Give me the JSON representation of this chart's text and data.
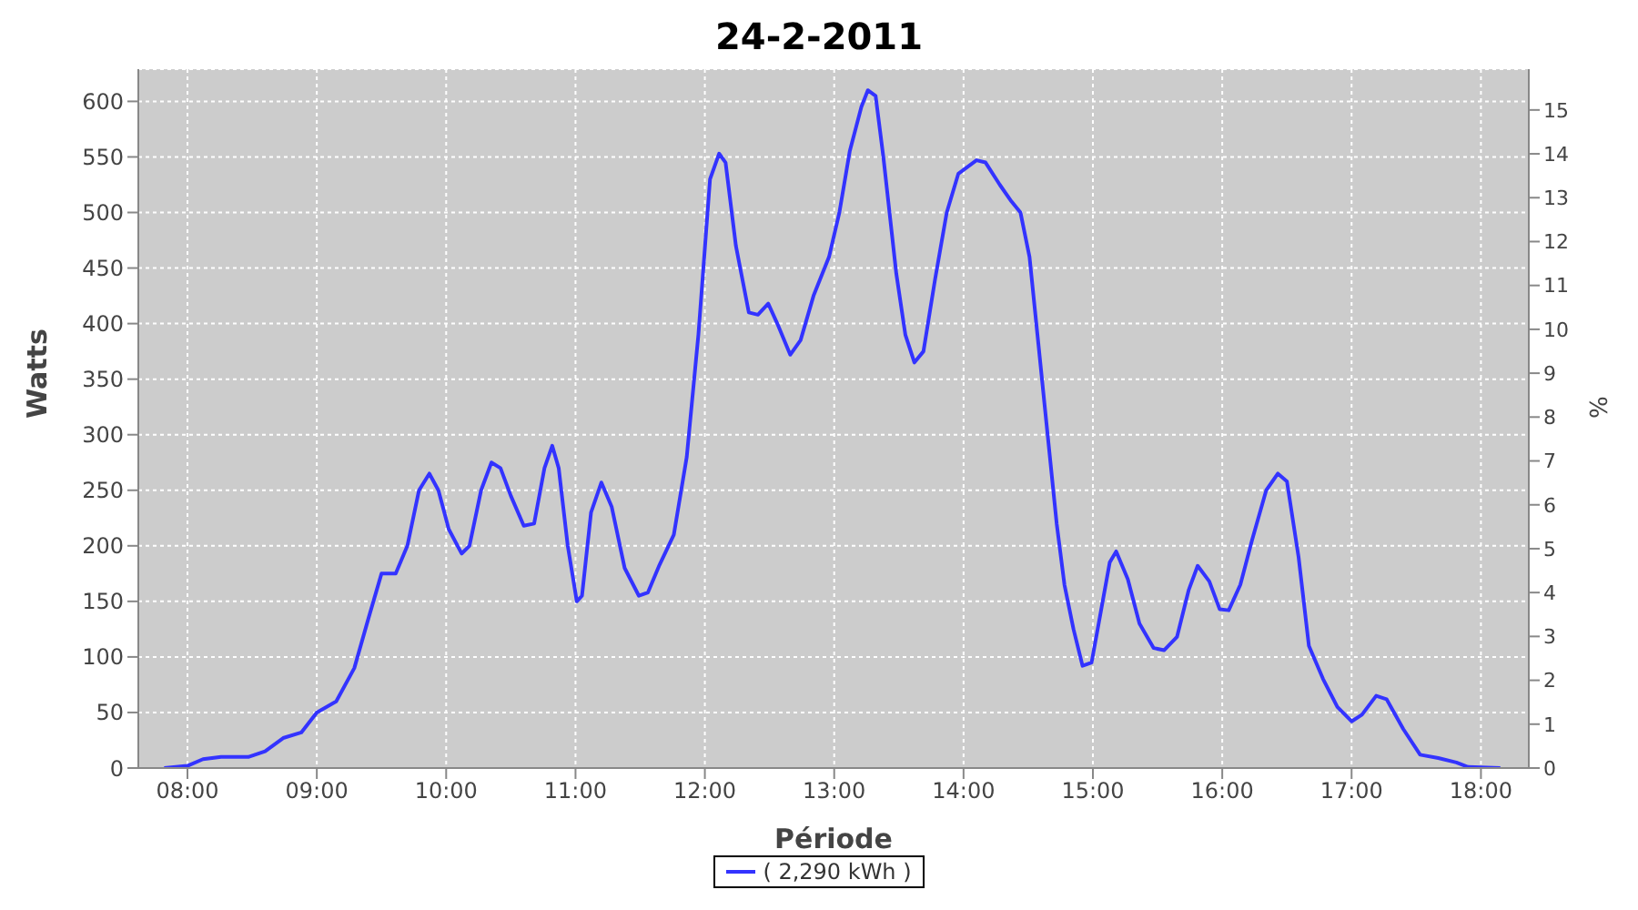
{
  "chart_data": {
    "type": "line",
    "title": "24-2-2011",
    "xlabel": "Période",
    "ylabel": "Watts",
    "y2label": "%",
    "x": [
      7.82,
      8.0,
      8.12,
      8.26,
      8.47,
      8.6,
      8.74,
      8.88,
      9.0,
      9.15,
      9.29,
      9.4,
      9.5,
      9.61,
      9.7,
      9.79,
      9.87,
      9.94,
      10.02,
      10.12,
      10.18,
      10.27,
      10.35,
      10.42,
      10.5,
      10.6,
      10.68,
      10.76,
      10.82,
      10.87,
      10.94,
      11.01,
      11.05,
      11.12,
      11.2,
      11.28,
      11.38,
      11.49,
      11.56,
      11.65,
      11.76,
      11.86,
      11.95,
      12.04,
      12.11,
      12.16,
      12.24,
      12.34,
      12.41,
      12.49,
      12.56,
      12.66,
      12.74,
      12.84,
      12.96,
      13.04,
      13.12,
      13.21,
      13.26,
      13.32,
      13.38,
      13.48,
      13.55,
      13.62,
      13.69,
      13.78,
      13.87,
      13.96,
      14.1,
      14.17,
      14.28,
      14.37,
      14.44,
      14.51,
      14.58,
      14.65,
      14.72,
      14.78,
      14.85,
      14.92,
      14.99,
      15.06,
      15.13,
      15.18,
      15.27,
      15.36,
      15.47,
      15.55,
      15.65,
      15.74,
      15.81,
      15.9,
      15.98,
      16.05,
      16.14,
      16.23,
      16.34,
      16.43,
      16.5,
      16.59,
      16.67,
      16.78,
      16.89,
      17.0,
      17.08,
      17.19,
      17.27,
      17.4,
      17.53,
      17.67,
      17.81,
      17.9,
      18.15
    ],
    "series": [
      {
        "name": "( 2,290 kWh )",
        "color": "#3333ff",
        "values": [
          0,
          2,
          8,
          10,
          10,
          15,
          27,
          32,
          50,
          60,
          90,
          135,
          175,
          175,
          200,
          250,
          265,
          250,
          215,
          193,
          200,
          250,
          275,
          270,
          245,
          218,
          220,
          270,
          290,
          270,
          200,
          150,
          155,
          230,
          257,
          235,
          180,
          155,
          158,
          183,
          210,
          280,
          390,
          530,
          553,
          545,
          470,
          410,
          408,
          418,
          400,
          372,
          385,
          425,
          460,
          500,
          555,
          595,
          610,
          605,
          550,
          445,
          390,
          365,
          375,
          440,
          500,
          535,
          547,
          545,
          525,
          510,
          500,
          460,
          380,
          300,
          220,
          165,
          125,
          92,
          95,
          140,
          185,
          195,
          170,
          130,
          108,
          106,
          118,
          160,
          182,
          168,
          143,
          142,
          165,
          205,
          250,
          265,
          258,
          190,
          110,
          80,
          55,
          42,
          48,
          65,
          62,
          35,
          12,
          9,
          5,
          1,
          0
        ]
      }
    ],
    "xlim": [
      7.62,
      18.37
    ],
    "xticks": [
      {
        "value": 8,
        "label": "08:00"
      },
      {
        "value": 9,
        "label": "09:00"
      },
      {
        "value": 10,
        "label": "10:00"
      },
      {
        "value": 11,
        "label": "11:00"
      },
      {
        "value": 12,
        "label": "12:00"
      },
      {
        "value": 13,
        "label": "13:00"
      },
      {
        "value": 14,
        "label": "14:00"
      },
      {
        "value": 15,
        "label": "15:00"
      },
      {
        "value": 16,
        "label": "16:00"
      },
      {
        "value": 17,
        "label": "17:00"
      },
      {
        "value": 18,
        "label": "18:00"
      }
    ],
    "ylim": [
      0,
      629
    ],
    "yticks": [
      0,
      50,
      100,
      150,
      200,
      250,
      300,
      350,
      400,
      450,
      500,
      550,
      600
    ],
    "y2lim": [
      0,
      15.93
    ],
    "y2ticks": [
      0,
      1,
      2,
      3,
      4,
      5,
      6,
      7,
      8,
      9,
      10,
      11,
      12,
      13,
      14,
      15
    ],
    "grid": true,
    "legend": "bottom"
  }
}
